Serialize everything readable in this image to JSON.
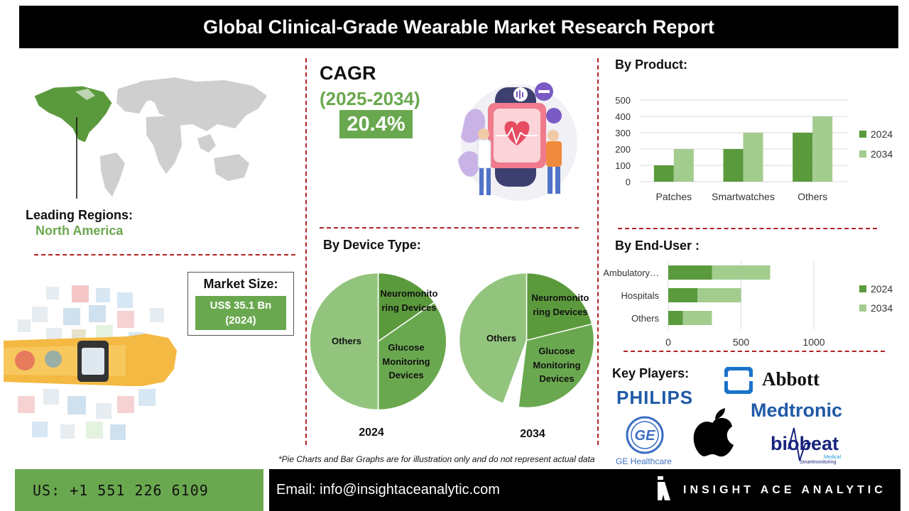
{
  "title": "Global Clinical-Grade Wearable Market Research Report",
  "regions": {
    "label": "Leading Regions:",
    "value": "North America"
  },
  "cagr": {
    "label": "CAGR",
    "period": "(2025-2034)",
    "value": "20.4%"
  },
  "market_size": {
    "label": "Market Size:",
    "value_line1": "US$ 35.1 Bn",
    "value_line2": "(2024)"
  },
  "device_type": {
    "heading": "By Device Type:"
  },
  "product": {
    "heading": "By Product:"
  },
  "end_user": {
    "heading": "By  End-User :"
  },
  "key_players": {
    "heading": "Key Players:",
    "logos": [
      "PHILIPS",
      "Abbott",
      "Medtronic",
      "GE Healthcare",
      "biobeat",
      "Smartmonitoring",
      "Medical"
    ]
  },
  "note": "*Pie Charts and Bar Graphs are for illustration only and do not represent actual data",
  "footer": {
    "phone": "US: +1 551 226 6109",
    "email": "Email: info@insightaceanalytic.com",
    "brand": "INSIGHT ACE ANALYTIC"
  },
  "colors": {
    "dark_green": "#5b9a3c",
    "light_green": "#a3cc8f",
    "accent": "#6aa84f",
    "divider": "#b22222"
  },
  "chart_data": [
    {
      "type": "pie",
      "title": "2024",
      "categories": [
        "Neuromonitoring Devices",
        "Glucose Monitoring Devices",
        "Others"
      ],
      "values": [
        18,
        32,
        50
      ]
    },
    {
      "type": "pie",
      "title": "2034",
      "categories": [
        "Neuromonitoring Devices",
        "Glucose Monitoring Devices",
        "Others"
      ],
      "values": [
        25,
        32,
        43
      ]
    },
    {
      "type": "bar",
      "categories": [
        "Patches",
        "Smartwatches",
        "Others"
      ],
      "series": [
        {
          "name": "2024",
          "values": [
            100,
            200,
            300
          ]
        },
        {
          "name": "2034",
          "values": [
            200,
            300,
            400
          ]
        }
      ],
      "ylim": [
        0,
        500
      ],
      "yticks": [
        "0",
        "100",
        "200",
        "300",
        "400",
        "500"
      ],
      "legend": "right"
    },
    {
      "type": "bar",
      "orientation": "horizontal",
      "categories": [
        "Ambulatory…",
        "Hospitals",
        "Others"
      ],
      "series": [
        {
          "name": "2024",
          "values": [
            300,
            200,
            100
          ]
        },
        {
          "name": "2034",
          "values": [
            400,
            300,
            200
          ]
        }
      ],
      "stacked": true,
      "xlim": [
        0,
        1200
      ],
      "xticks": [
        "0",
        "500",
        "1000"
      ],
      "legend": "right"
    }
  ]
}
